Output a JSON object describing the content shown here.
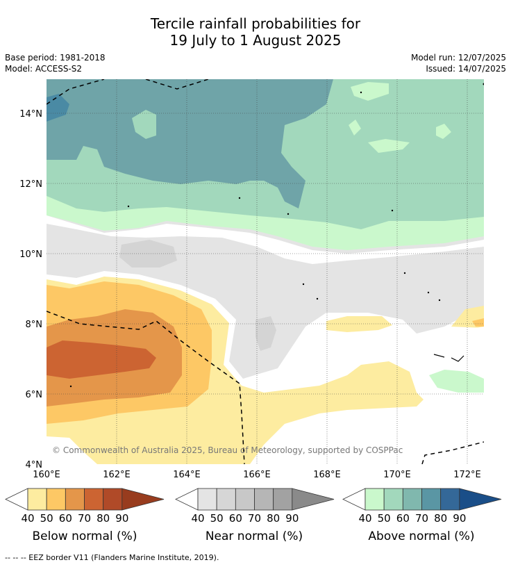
{
  "title_line1": "Tercile rainfall probabilities for",
  "title_line2": "19 July to 1 August 2025",
  "base_period": "Base period: 1981-2018",
  "model": "Model: ACCESS-S2",
  "model_run": "Model run: 12/07/2025",
  "issued": "Issued: 14/07/2025",
  "copyright": "© Commonwealth of Australia 2025, Bureau of Meteorology, supported by COSPPac",
  "footnote": "--  --  -- EEZ border V11 (Flanders Marine Institute, 2019).",
  "lon_labels": [
    "160°E",
    "162°E",
    "164°E",
    "166°E",
    "168°E",
    "170°E",
    "172°E"
  ],
  "lat_labels": [
    "4°N",
    "6°N",
    "8°N",
    "10°N",
    "12°N",
    "14°N"
  ],
  "colorbars": [
    {
      "label": "Below normal (%)",
      "ticks": [
        "40",
        "50",
        "60",
        "70",
        "80",
        "90"
      ],
      "colors": [
        "#fdeca0",
        "#fdc865",
        "#e4964a",
        "#cc6432",
        "#b04a28",
        "#983c1e"
      ]
    },
    {
      "label": "Near normal (%)",
      "ticks": [
        "40",
        "50",
        "60",
        "70",
        "80",
        "90"
      ],
      "colors": [
        "#e4e4e4",
        "#d6d6d6",
        "#c8c8c8",
        "#b6b6b6",
        "#a2a2a2",
        "#8a8a8a"
      ]
    },
    {
      "label": "Above normal (%)",
      "ticks": [
        "40",
        "50",
        "60",
        "70",
        "80",
        "90"
      ],
      "colors": [
        "#caf8cc",
        "#a2d8bc",
        "#80b8ae",
        "#5a96a4",
        "#346898",
        "#1a4e88"
      ]
    }
  ]
}
